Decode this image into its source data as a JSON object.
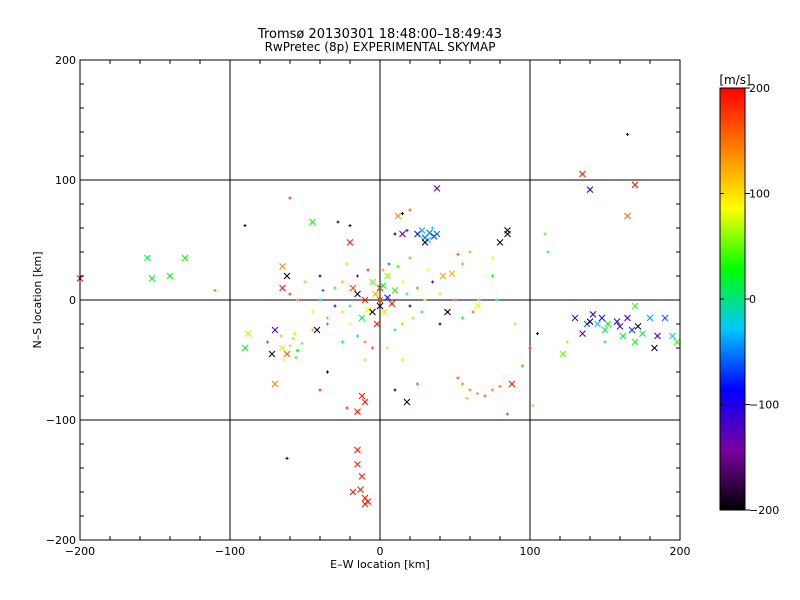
{
  "chart_data": {
    "type": "scatter",
    "title": "Tromsø 20130301 18:48:00–18:49:43",
    "subtitle": "RwPretec (8p) EXPERIMENTAL SKYMAP",
    "xlabel": "E–W location [km]",
    "ylabel": "N–S location [km]",
    "xlim": [
      -200,
      200
    ],
    "ylim": [
      -200,
      200
    ],
    "xticks": [
      "−200",
      "−100",
      "0",
      "100",
      "200"
    ],
    "yticks": [
      "−200",
      "−100",
      "0",
      "100",
      "200"
    ],
    "grid": true,
    "colorbar": {
      "label": "[m/s]",
      "range": [
        -200,
        200
      ],
      "ticks": [
        "200",
        "100",
        "0",
        "−100",
        "−200"
      ],
      "colors": [
        "#000000",
        "#7a00a0",
        "#0000ff",
        "#00c8ff",
        "#00ff00",
        "#ffff00",
        "#ff7f00",
        "#ff0000"
      ]
    },
    "marker_types": [
      "cross (x)",
      "dot (+)"
    ],
    "points": [
      [
        -200,
        18,
        195,
        "x"
      ],
      [
        -155,
        35,
        10,
        "x"
      ],
      [
        -152,
        18,
        20,
        "x"
      ],
      [
        -140,
        20,
        25,
        "x"
      ],
      [
        -130,
        35,
        30,
        "x"
      ],
      [
        -110,
        8,
        150,
        "+"
      ],
      [
        -90,
        -40,
        20,
        "x"
      ],
      [
        -88,
        -28,
        70,
        "x"
      ],
      [
        -70,
        -25,
        -120,
        "x"
      ],
      [
        -72,
        -45,
        -190,
        "x"
      ],
      [
        -70,
        -70,
        140,
        "x"
      ],
      [
        -65,
        -40,
        100,
        "x"
      ],
      [
        -62,
        -45,
        160,
        "x"
      ],
      [
        -60,
        -38,
        110,
        "+"
      ],
      [
        -58,
        -32,
        60,
        "+"
      ],
      [
        -56,
        -48,
        40,
        "+"
      ],
      [
        -55,
        -42,
        30,
        "+"
      ],
      [
        -64,
        -50,
        90,
        "+"
      ],
      [
        -75,
        -35,
        180,
        "+"
      ],
      [
        -66,
        -30,
        120,
        "+"
      ],
      [
        -52,
        -36,
        50,
        "+"
      ],
      [
        -57,
        -28,
        70,
        "+"
      ],
      [
        -65,
        28,
        140,
        "x"
      ],
      [
        -65,
        10,
        190,
        "x"
      ],
      [
        -60,
        5,
        180,
        "+"
      ],
      [
        -62,
        20,
        -190,
        "x"
      ],
      [
        -45,
        65,
        30,
        "x"
      ],
      [
        -55,
        0,
        150,
        "+"
      ],
      [
        -90,
        62,
        -190,
        "+"
      ],
      [
        -62,
        -132,
        -190,
        "+"
      ],
      [
        -60,
        85,
        185,
        "+"
      ],
      [
        -40,
        20,
        -190,
        "+"
      ],
      [
        -42,
        -25,
        -190,
        "x"
      ],
      [
        -38,
        8,
        -60,
        "+"
      ],
      [
        -20,
        48,
        190,
        "x"
      ],
      [
        -20,
        62,
        -190,
        "+"
      ],
      [
        -28,
        65,
        -190,
        "+"
      ],
      [
        -22,
        30,
        60,
        "+"
      ],
      [
        -25,
        15,
        120,
        "+"
      ],
      [
        -30,
        -5,
        -100,
        "+"
      ],
      [
        -35,
        -15,
        40,
        "+"
      ],
      [
        -20,
        -20,
        80,
        "+"
      ],
      [
        -15,
        -30,
        -20,
        "+"
      ],
      [
        -10,
        -35,
        150,
        "+"
      ],
      [
        -25,
        -35,
        20,
        "+"
      ],
      [
        -5,
        -40,
        170,
        "+"
      ],
      [
        -10,
        -50,
        60,
        "+"
      ],
      [
        -18,
        10,
        170,
        "x"
      ],
      [
        -15,
        5,
        -190,
        "x"
      ],
      [
        -10,
        0,
        190,
        "x"
      ],
      [
        -8,
        -8,
        80,
        "x"
      ],
      [
        -12,
        -15,
        10,
        "x"
      ],
      [
        -5,
        15,
        50,
        "x"
      ],
      [
        -5,
        -10,
        -190,
        "x"
      ],
      [
        -3,
        5,
        120,
        "x"
      ],
      [
        0,
        10,
        190,
        "x"
      ],
      [
        0,
        0,
        160,
        "x"
      ],
      [
        0,
        -5,
        -190,
        "x"
      ],
      [
        2,
        12,
        20,
        "x"
      ],
      [
        3,
        -10,
        100,
        "x"
      ],
      [
        5,
        2,
        -80,
        "x"
      ],
      [
        5,
        20,
        60,
        "x"
      ],
      [
        8,
        -3,
        190,
        "x"
      ],
      [
        10,
        8,
        40,
        "x"
      ],
      [
        -2,
        -20,
        190,
        "x"
      ],
      [
        2,
        25,
        130,
        "+"
      ],
      [
        6,
        30,
        -60,
        "+"
      ],
      [
        12,
        28,
        40,
        "+"
      ],
      [
        15,
        15,
        90,
        "+"
      ],
      [
        18,
        5,
        30,
        "+"
      ],
      [
        20,
        -5,
        -190,
        "+"
      ],
      [
        22,
        -15,
        60,
        "+"
      ],
      [
        15,
        -20,
        120,
        "+"
      ],
      [
        10,
        -25,
        -30,
        "+"
      ],
      [
        25,
        10,
        150,
        "+"
      ],
      [
        30,
        0,
        70,
        "+"
      ],
      [
        28,
        -10,
        10,
        "+"
      ],
      [
        35,
        15,
        -120,
        "+"
      ],
      [
        32,
        25,
        80,
        "+"
      ],
      [
        40,
        5,
        110,
        "+"
      ],
      [
        45,
        -10,
        40,
        "+"
      ],
      [
        40,
        -20,
        -190,
        "+"
      ],
      [
        50,
        0,
        160,
        "+"
      ],
      [
        55,
        -15,
        20,
        "+"
      ],
      [
        20,
        35,
        140,
        "+"
      ],
      [
        -15,
        20,
        -150,
        "+"
      ],
      [
        -25,
        -10,
        100,
        "+"
      ],
      [
        -30,
        10,
        30,
        "+"
      ],
      [
        -35,
        -20,
        160,
        "+"
      ],
      [
        -40,
        0,
        -40,
        "+"
      ],
      [
        -45,
        -10,
        90,
        "+"
      ],
      [
        -50,
        15,
        50,
        "+"
      ],
      [
        -45,
        -25,
        130,
        "+"
      ],
      [
        -20,
        -5,
        0,
        "+"
      ],
      [
        -8,
        25,
        190,
        "+"
      ],
      [
        12,
        70,
        140,
        "x"
      ],
      [
        15,
        72,
        -190,
        "+"
      ],
      [
        20,
        75,
        170,
        "+"
      ],
      [
        10,
        55,
        -190,
        "+"
      ],
      [
        18,
        58,
        -100,
        "+"
      ],
      [
        15,
        55,
        -150,
        "x"
      ],
      [
        25,
        55,
        -80,
        "x"
      ],
      [
        28,
        58,
        -40,
        "x"
      ],
      [
        30,
        52,
        -60,
        "x"
      ],
      [
        33,
        56,
        -50,
        "x"
      ],
      [
        36,
        53,
        -70,
        "x"
      ],
      [
        38,
        55,
        -55,
        "x"
      ],
      [
        32,
        50,
        -30,
        "x"
      ],
      [
        35,
        60,
        -20,
        "+"
      ],
      [
        30,
        48,
        -190,
        "x"
      ],
      [
        28,
        52,
        60,
        "+"
      ],
      [
        38,
        93,
        -130,
        "x"
      ],
      [
        45,
        -10,
        -190,
        "x"
      ],
      [
        42,
        20,
        130,
        "x"
      ],
      [
        48,
        22,
        120,
        "x"
      ],
      [
        55,
        30,
        140,
        "+"
      ],
      [
        52,
        38,
        170,
        "+"
      ],
      [
        60,
        40,
        130,
        "+"
      ],
      [
        65,
        -5,
        80,
        "x"
      ],
      [
        66,
        0,
        40,
        "+"
      ],
      [
        75,
        20,
        30,
        "+"
      ],
      [
        78,
        0,
        -20,
        "+"
      ],
      [
        80,
        48,
        -190,
        "x"
      ],
      [
        85,
        55,
        -190,
        "x"
      ],
      [
        85,
        58,
        -190,
        "x"
      ],
      [
        90,
        -20,
        60,
        "+"
      ],
      [
        75,
        35,
        80,
        "+"
      ],
      [
        62,
        -10,
        160,
        "+"
      ],
      [
        110,
        55,
        40,
        "+"
      ],
      [
        112,
        40,
        20,
        "+"
      ],
      [
        105,
        -28,
        -190,
        "+"
      ],
      [
        100,
        -40,
        190,
        "+"
      ],
      [
        95,
        -55,
        150,
        "+"
      ],
      [
        102,
        -88,
        60,
        "+"
      ],
      [
        55,
        -70,
        140,
        "+"
      ],
      [
        60,
        -75,
        150,
        "+"
      ],
      [
        65,
        -78,
        130,
        "+"
      ],
      [
        70,
        -80,
        160,
        "+"
      ],
      [
        75,
        -75,
        140,
        "+"
      ],
      [
        80,
        -72,
        150,
        "+"
      ],
      [
        52,
        -65,
        170,
        "+"
      ],
      [
        58,
        -82,
        120,
        "+"
      ],
      [
        85,
        -95,
        170,
        "+"
      ],
      [
        88,
        -70,
        190,
        "x"
      ],
      [
        -12,
        -80,
        190,
        "x"
      ],
      [
        -10,
        -85,
        190,
        "x"
      ],
      [
        -15,
        -93,
        190,
        "x"
      ],
      [
        -22,
        -90,
        190,
        "+"
      ],
      [
        -35,
        -60,
        -190,
        "+"
      ],
      [
        -40,
        -75,
        190,
        "+"
      ],
      [
        10,
        -75,
        -190,
        "+"
      ],
      [
        18,
        -85,
        -190,
        "x"
      ],
      [
        25,
        -70,
        170,
        "+"
      ],
      [
        15,
        -50,
        100,
        "+"
      ],
      [
        5,
        -40,
        70,
        "+"
      ],
      [
        -15,
        -125,
        190,
        "x"
      ],
      [
        -15,
        -137,
        190,
        "x"
      ],
      [
        -12,
        -147,
        190,
        "x"
      ],
      [
        -18,
        -160,
        190,
        "x"
      ],
      [
        -13,
        -158,
        190,
        "x"
      ],
      [
        -10,
        -165,
        190,
        "x"
      ],
      [
        -8,
        -168,
        190,
        "x"
      ],
      [
        -10,
        -170,
        190,
        "x"
      ],
      [
        135,
        105,
        190,
        "x"
      ],
      [
        140,
        92,
        -110,
        "x"
      ],
      [
        165,
        138,
        -190,
        "+"
      ],
      [
        170,
        96,
        190,
        "x"
      ],
      [
        165,
        70,
        150,
        "x"
      ],
      [
        130,
        -15,
        -130,
        "x"
      ],
      [
        135,
        -28,
        -120,
        "x"
      ],
      [
        138,
        -20,
        -60,
        "x"
      ],
      [
        140,
        -18,
        -190,
        "x"
      ],
      [
        142,
        -12,
        -110,
        "x"
      ],
      [
        145,
        -20,
        -30,
        "x"
      ],
      [
        148,
        -15,
        -80,
        "x"
      ],
      [
        150,
        -25,
        10,
        "x"
      ],
      [
        152,
        -20,
        30,
        "x"
      ],
      [
        158,
        -18,
        -100,
        "x"
      ],
      [
        160,
        -22,
        -150,
        "x"
      ],
      [
        162,
        -30,
        20,
        "x"
      ],
      [
        165,
        -15,
        -120,
        "x"
      ],
      [
        168,
        -25,
        -70,
        "x"
      ],
      [
        170,
        -35,
        30,
        "x"
      ],
      [
        172,
        -22,
        -190,
        "x"
      ],
      [
        175,
        -28,
        10,
        "x"
      ],
      [
        180,
        -15,
        -40,
        "x"
      ],
      [
        183,
        -40,
        -190,
        "x"
      ],
      [
        185,
        -30,
        -110,
        "x"
      ],
      [
        190,
        -15,
        -60,
        "x"
      ],
      [
        195,
        -30,
        -20,
        "x"
      ],
      [
        198,
        -35,
        40,
        "x"
      ],
      [
        122,
        -45,
        50,
        "x"
      ],
      [
        125,
        -35,
        60,
        "+"
      ],
      [
        170,
        -5,
        40,
        "x"
      ],
      [
        150,
        -35,
        30,
        "+"
      ]
    ]
  }
}
